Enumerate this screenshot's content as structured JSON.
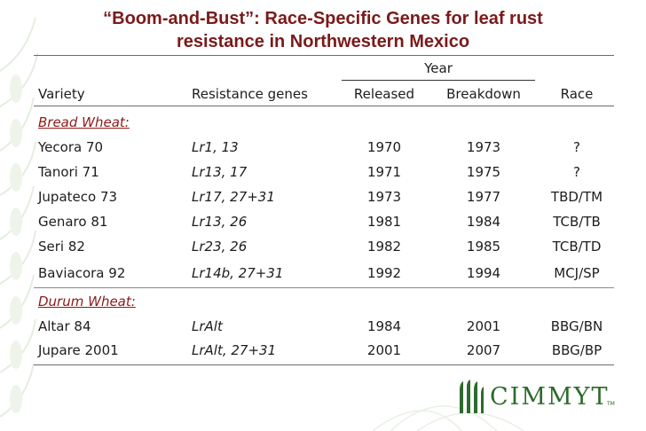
{
  "title_line1": "“Boom-and-Bust”: Race-Specific Genes for leaf rust",
  "title_line2": "resistance in Northwestern Mexico",
  "header": {
    "group": "Year",
    "variety": "Variety",
    "genes": "Resistance genes",
    "released": "Released",
    "breakdown": "Breakdown",
    "race": "Race"
  },
  "sections": [
    {
      "label": "Bread Wheat:",
      "rows": [
        {
          "variety": "Yecora 70",
          "genes": "Lr1, 13",
          "released": "1970",
          "breakdown": "1973",
          "race": "?"
        },
        {
          "variety": "Tanori 71",
          "genes": "Lr13, 17",
          "released": "1971",
          "breakdown": "1975",
          "race": "?"
        },
        {
          "variety": "Jupateco 73",
          "genes": "Lr17, 27+31",
          "released": "1973",
          "breakdown": "1977",
          "race": "TBD/TM"
        },
        {
          "variety": "Genaro 81",
          "genes": "Lr13, 26",
          "released": "1981",
          "breakdown": "1984",
          "race": "TCB/TB"
        },
        {
          "variety": "Seri 82",
          "genes": "Lr23, 26",
          "released": "1982",
          "breakdown": "1985",
          "race": "TCB/TD"
        },
        {
          "variety": "Baviacora 92",
          "genes": "Lr14b, 27+31",
          "released": "1992",
          "breakdown": "1994",
          "race": "MCJ/SP"
        }
      ]
    },
    {
      "label": "Durum Wheat:",
      "rows": [
        {
          "variety": "Altar 84",
          "genes": "LrAlt",
          "released": "1984",
          "breakdown": "2001",
          "race": "BBG/BN"
        },
        {
          "variety": "Jupare 2001",
          "genes": "LrAlt, 27+31",
          "released": "2001",
          "breakdown": "2007",
          "race": "BBG/BP"
        }
      ]
    }
  ],
  "logo": {
    "text": "CIMMYT",
    "tm": "TM"
  }
}
